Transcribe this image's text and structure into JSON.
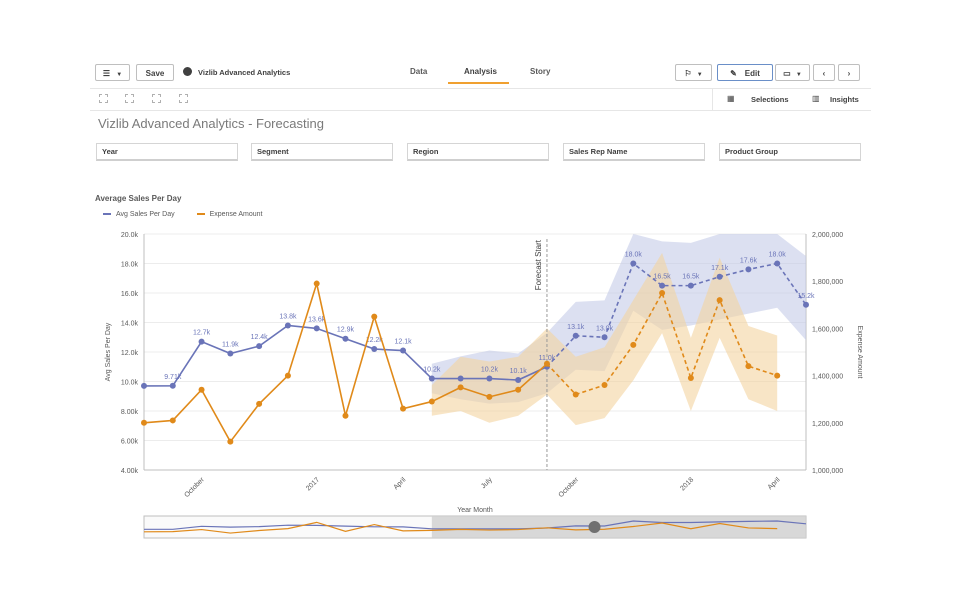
{
  "toolbar": {
    "save_label": "Save",
    "app_title": "Vizlib Advanced Analytics",
    "tabs": [
      {
        "label": "Data"
      },
      {
        "label": "Analysis",
        "active": true
      },
      {
        "label": "Story"
      }
    ],
    "edit_label": "Edit"
  },
  "subbar": {
    "selections_label": "Selections",
    "insights_label": "Insights"
  },
  "sheet": {
    "title": "Vizlib Advanced Analytics - Forecasting"
  },
  "filters": [
    {
      "label": "Year"
    },
    {
      "label": "Segment"
    },
    {
      "label": "Region"
    },
    {
      "label": "Sales Rep Name"
    },
    {
      "label": "Product Group"
    }
  ],
  "colors": {
    "accent": "#f0a030",
    "series_avg_sales": "#6a74b8",
    "series_expense": "#e08a1a",
    "band_avg_sales": "#c5cbe8",
    "band_expense": "#f3d3a0"
  },
  "chart_data": {
    "type": "line",
    "title": "Average Sales Per Day",
    "xlabel": "Year Month",
    "ylabel": "Avg Sales Per Day",
    "y2label": "Expense Amount",
    "x_tick_labels": [
      "October",
      "2017",
      "April",
      "July",
      "October",
      "2018",
      "April"
    ],
    "y_tick_labels": [
      "4.00k",
      "6.00k",
      "8.00k",
      "10.0k",
      "12.0k",
      "14.0k",
      "16.0k",
      "18.0k",
      "20.0k"
    ],
    "y2_tick_labels": [
      "1,000,000",
      "1,200,000",
      "1,400,000",
      "1,600,000",
      "1,800,000",
      "2,000,000"
    ],
    "ylim": [
      4000,
      20000
    ],
    "y2lim": [
      1000000,
      2000000
    ],
    "forecast_label": "Forecast Start",
    "forecast_start_index": 14,
    "grid": true,
    "legend_position": "top-left",
    "series": [
      {
        "name": "Avg Sales Per Day",
        "axis": "left",
        "values": [
          9700,
          9710,
          12700,
          11900,
          12400,
          13800,
          13600,
          12900,
          12200,
          12100,
          10200,
          10200,
          10200,
          10100,
          11000,
          13100,
          13000,
          18000,
          16500,
          16500,
          17100,
          17600,
          18000,
          15200
        ],
        "data_labels": [
          "",
          "9.71k",
          "12.7k",
          "11.9k",
          "12.4k",
          "13.8k",
          "13.6k",
          "12.9k",
          "12.2k",
          "12.1k",
          "10.2k",
          "",
          "10.2k",
          "10.1k",
          "11.0k",
          "13.1k",
          "13.0k",
          "18.0k",
          "16.5k",
          "16.5k",
          "17.1k",
          "17.6k",
          "18.0k",
          "15.2k"
        ],
        "lower": [
          null,
          null,
          null,
          null,
          null,
          null,
          null,
          null,
          null,
          null,
          9200,
          8800,
          8500,
          8600,
          9200,
          10800,
          10700,
          14800,
          13500,
          13800,
          14200,
          14600,
          15000,
          12800
        ],
        "upper": [
          null,
          null,
          null,
          null,
          null,
          null,
          null,
          null,
          null,
          null,
          11200,
          11700,
          12100,
          11900,
          13300,
          15400,
          15500,
          20000,
          19500,
          19400,
          20000,
          20000,
          20000,
          18500
        ]
      },
      {
        "name": "Expense Amount",
        "axis": "right",
        "values": [
          1200000,
          1210000,
          1340000,
          1120000,
          1280000,
          1400000,
          1790000,
          1230000,
          1650000,
          1260000,
          1290000,
          1350000,
          1310000,
          1340000,
          1450000,
          1320000,
          1360000,
          1530000,
          1750000,
          1390000,
          1720000,
          1440000,
          1400000
        ],
        "data_labels": [],
        "lower": [
          null,
          null,
          null,
          null,
          null,
          null,
          null,
          null,
          null,
          null,
          1230000,
          1250000,
          1200000,
          1230000,
          1320000,
          1190000,
          1220000,
          1380000,
          1580000,
          1250000,
          1560000,
          1300000,
          1250000
        ],
        "upper": [
          null,
          null,
          null,
          null,
          null,
          null,
          null,
          null,
          null,
          null,
          1360000,
          1480000,
          1460000,
          1480000,
          1600000,
          1480000,
          1520000,
          1720000,
          1920000,
          1560000,
          1900000,
          1610000,
          1570000
        ]
      }
    ]
  }
}
